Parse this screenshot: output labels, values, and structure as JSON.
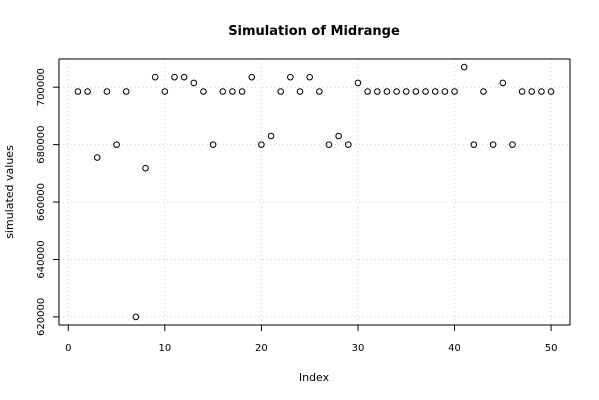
{
  "chart_data": {
    "type": "scatter",
    "title": "Simulation of Midrange",
    "xlabel": "Index",
    "ylabel": "simulated values",
    "xlim": [
      -0.96,
      51.96
    ],
    "ylim": [
      617180,
      709820
    ],
    "x_ticks": [
      0,
      10,
      20,
      30,
      40,
      50
    ],
    "y_ticks": [
      620000,
      640000,
      660000,
      680000,
      700000
    ],
    "x_tick_labels": [
      "0",
      "10",
      "20",
      "30",
      "40",
      "50"
    ],
    "y_tick_labels": [
      "620000",
      "640000",
      "660000",
      "680000",
      "700000"
    ],
    "grid": true,
    "marker": "open-circle",
    "x": [
      1,
      2,
      3,
      4,
      5,
      6,
      7,
      8,
      9,
      10,
      11,
      12,
      13,
      14,
      15,
      16,
      17,
      18,
      19,
      20,
      21,
      22,
      23,
      24,
      25,
      26,
      27,
      28,
      29,
      30,
      31,
      32,
      33,
      34,
      35,
      36,
      37,
      38,
      39,
      40,
      41,
      42,
      43,
      44,
      45,
      46,
      47,
      48,
      49,
      50
    ],
    "y": [
      698500,
      698500,
      675500,
      698500,
      680000,
      698500,
      620000,
      671800,
      703500,
      698500,
      703500,
      703500,
      701500,
      698500,
      680000,
      698500,
      698500,
      698500,
      703500,
      680000,
      683000,
      698500,
      703500,
      698500,
      703500,
      698500,
      680000,
      683000,
      680000,
      701500,
      698500,
      698500,
      698500,
      698500,
      698500,
      698500,
      698500,
      698500,
      698500,
      698500,
      707000,
      680000,
      698500,
      680000,
      701500,
      680000,
      698500,
      698500,
      698500,
      698500
    ]
  }
}
